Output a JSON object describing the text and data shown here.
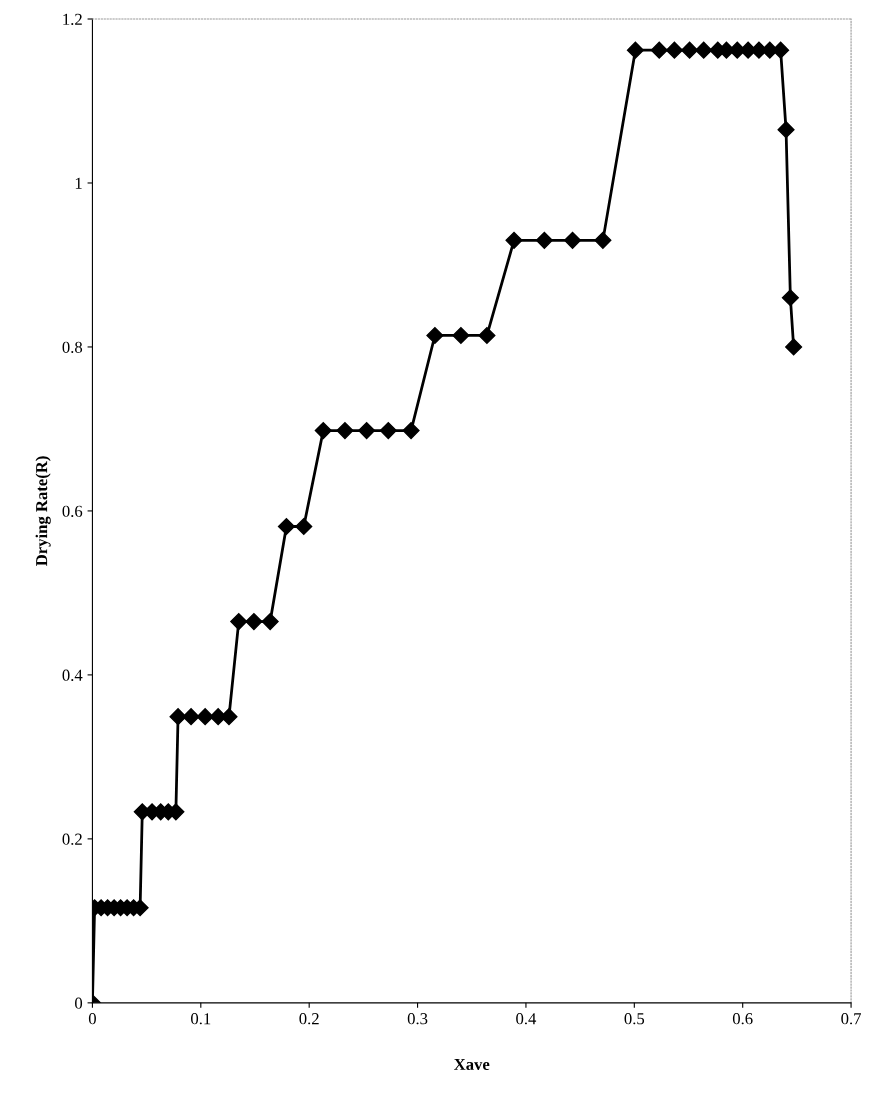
{
  "chart_data": {
    "type": "line",
    "xlabel": "Xave",
    "ylabel": "Drying Rate(R)",
    "x": [
      0,
      0.002,
      0.008,
      0.014,
      0.02,
      0.026,
      0.032,
      0.038,
      0.044,
      0.046,
      0.055,
      0.063,
      0.07,
      0.077,
      0.079,
      0.091,
      0.104,
      0.116,
      0.126,
      0.135,
      0.149,
      0.164,
      0.179,
      0.195,
      0.213,
      0.233,
      0.253,
      0.273,
      0.294,
      0.316,
      0.34,
      0.364,
      0.389,
      0.417,
      0.443,
      0.471,
      0.501,
      0.523,
      0.537,
      0.551,
      0.564,
      0.577,
      0.585,
      0.595,
      0.605,
      0.615,
      0.625,
      0.635,
      0.64,
      0.644,
      0.647
    ],
    "series": [
      {
        "color": "#000000",
        "values": [
          0,
          0.116,
          0.116,
          0.116,
          0.116,
          0.116,
          0.116,
          0.116,
          0.116,
          0.233,
          0.233,
          0.233,
          0.233,
          0.233,
          0.349,
          0.349,
          0.349,
          0.349,
          0.349,
          0.465,
          0.465,
          0.465,
          0.581,
          0.581,
          0.698,
          0.698,
          0.698,
          0.698,
          0.698,
          0.814,
          0.814,
          0.814,
          0.93,
          0.93,
          0.93,
          0.93,
          1.162,
          1.162,
          1.162,
          1.162,
          1.162,
          1.162,
          1.162,
          1.162,
          1.162,
          1.162,
          1.162,
          1.162,
          1.065,
          0.86,
          0.8
        ]
      }
    ],
    "xlim": [
      0,
      0.7
    ],
    "ylim": [
      0,
      1.2
    ],
    "xticks": [
      0,
      0.1,
      0.2,
      0.3,
      0.4,
      0.5,
      0.6,
      0.7
    ],
    "yticks": [
      0,
      0.2,
      0.4,
      0.6,
      0.8,
      {
        "value": 1,
        "label": "1"
      },
      1.2
    ],
    "marker": "diamond",
    "line_style": "solid",
    "grid": false
  }
}
